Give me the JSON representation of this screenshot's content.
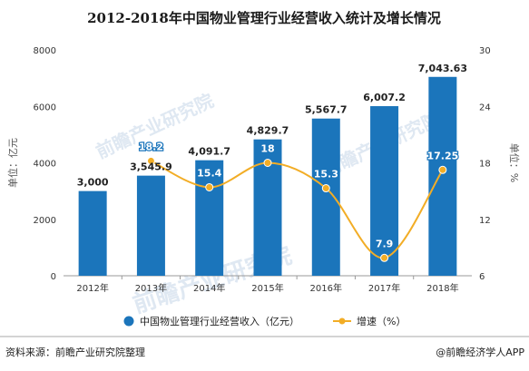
{
  "footer": {
    "source": "资料来源：前瞻产业研究院整理",
    "credit": "@前瞻经济学人APP"
  },
  "chart_data": {
    "type": "bar",
    "title": "2012-2018年中国物业管理行业经营收入统计及增长情况",
    "categories": [
      "2012年",
      "2013年",
      "2014年",
      "2015年",
      "2016年",
      "2017年",
      "2018年"
    ],
    "series": [
      {
        "name": "中国物业管理行业经营收入（亿元）",
        "type": "bar",
        "axis": "left",
        "color": "#1b75bb",
        "values": [
          3000,
          3545.9,
          4091.7,
          4829.7,
          5567.7,
          6007.2,
          7043.63
        ],
        "labels": [
          "3,000",
          "3,545.9",
          "4,091.7",
          "4,829.7",
          "5,567.7",
          "6,007.2",
          "7,043.63"
        ]
      },
      {
        "name": "增速（%）",
        "type": "line",
        "axis": "right",
        "color": "#f2ad26",
        "values": [
          null,
          18.2,
          15.4,
          18,
          15.3,
          7.9,
          17.25
        ],
        "labels": [
          "",
          "18.2",
          "15.4",
          "18",
          "15.3",
          "7.9",
          "17.25"
        ]
      }
    ],
    "y_left": {
      "label": "单位：亿元",
      "min": 0,
      "max": 8000,
      "ticks": [
        0,
        2000,
        4000,
        6000,
        8000
      ]
    },
    "y_right": {
      "label": "单位：%",
      "min": 6,
      "max": 30,
      "ticks": [
        6,
        12,
        18,
        24,
        30
      ]
    },
    "grid": false,
    "legend": "bottom",
    "watermark": "前瞻产业研究院"
  }
}
